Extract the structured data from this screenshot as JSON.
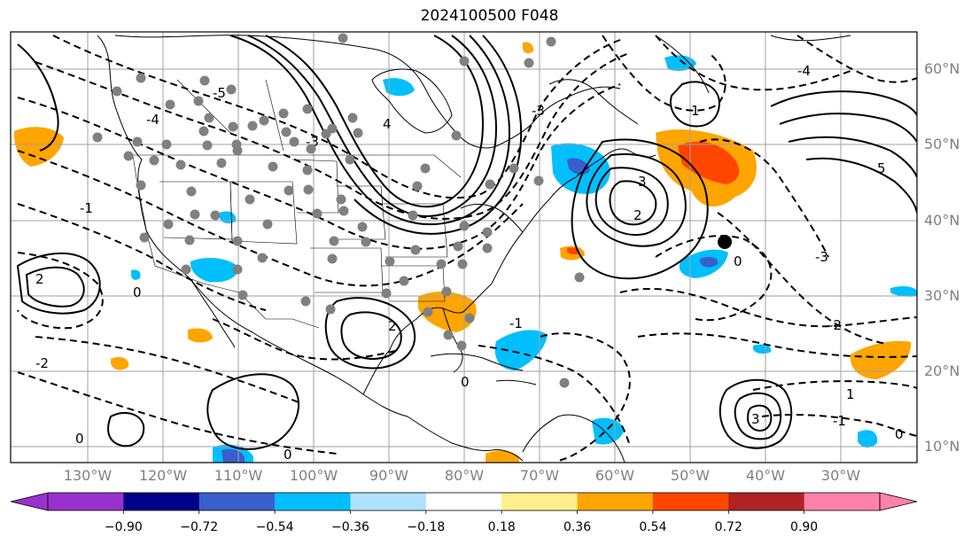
{
  "title": "2024100500 F048",
  "latitude_labels": [
    "60°N",
    "50°N",
    "40°N",
    "30°N",
    "20°N",
    "10°N"
  ],
  "longitude_labels": [
    "130°W",
    "120°W",
    "110°W",
    "100°W",
    "90°W",
    "80°W",
    "70°W",
    "60°W",
    "50°W",
    "40°W",
    "30°W"
  ],
  "contour_labels": [
    "0",
    "-1",
    "-2",
    "-3",
    "-4",
    "-5",
    "1",
    "2",
    "3",
    "4",
    "5"
  ],
  "colorbar": {
    "tick_labels": [
      "−0.90",
      "−0.72",
      "−0.54",
      "−0.36",
      "−0.18",
      "0.18",
      "0.36",
      "0.54",
      "0.72",
      "0.90"
    ],
    "colors": [
      "#9932cc",
      "#00008b",
      "#3a5fcd",
      "#00bfff",
      "#b0e2ff",
      "#ffffff",
      "#fff08a",
      "#ffa500",
      "#ff4500",
      "#b22222",
      "#ff82ab"
    ],
    "extend": "both"
  },
  "style": {
    "grid_color": "#a0a0a0",
    "label_color": "#808080",
    "station_marker_color": "#808080",
    "highlight_marker_color": "#000000"
  }
}
